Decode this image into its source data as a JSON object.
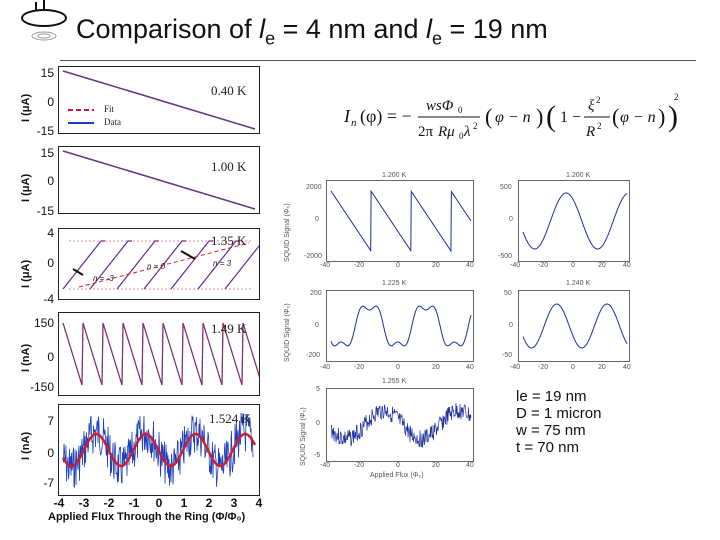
{
  "slide": {
    "title_prefix": "Comparison of ",
    "title_var1": "l",
    "title_sub1": "e",
    "title_mid": " = 4 nm and ",
    "title_var2": "l",
    "title_sub2": "e",
    "title_suffix": " = 19 nm"
  },
  "left_panels": [
    {
      "temp": "0.40 K",
      "yticks": [
        "15",
        "0",
        "-15"
      ],
      "ylabel": "I (μA)"
    },
    {
      "temp": "1.00 K",
      "yticks": [
        "15",
        "0",
        "-15"
      ],
      "ylabel": "I (μA)"
    },
    {
      "temp": "1.35 K",
      "yticks": [
        "4",
        "0",
        "-4"
      ],
      "ylabel": "I (μA)"
    },
    {
      "temp": "1.49 K",
      "yticks": [
        "150",
        "0",
        "-150"
      ],
      "ylabel": "I (nA)"
    },
    {
      "temp": "1.524 K",
      "yticks": [
        "7",
        "0",
        "-7"
      ],
      "ylabel": "I (nA)"
    }
  ],
  "legend": {
    "fit": "Fit",
    "data": "Data",
    "fit_color": "#cc1e2e",
    "data_color": "#1f3fbf"
  },
  "annotations": {
    "n0": "n = 0",
    "n3": "n = 3",
    "nm3": "n = -3"
  },
  "x_axis": {
    "ticks": [
      "-4",
      "-3",
      "-2",
      "-1",
      "0",
      "1",
      "2",
      "3",
      "4"
    ],
    "label": "Applied Flux Through the Ring (Φ/Φ₀)"
  },
  "right_panels": [
    {
      "title": "1.200 K",
      "yticks": [
        "2000",
        "0",
        "-2000"
      ],
      "xticks": [
        "-40",
        "-20",
        "0",
        "20",
        "40"
      ],
      "ylabel": "SQUID Signal (Φ₀)"
    },
    {
      "title": "1.200 K",
      "yticks": [
        "500",
        "0",
        "-500"
      ],
      "xticks": [
        "-40",
        "-20",
        "0",
        "20",
        "40"
      ]
    },
    {
      "title": "1.225 K",
      "yticks": [
        "200",
        "0",
        "-200"
      ],
      "xticks": [
        "-40",
        "-20",
        "0",
        "20",
        "40"
      ],
      "ylabel": "SQUID Signal (Φ₀)"
    },
    {
      "title": "1.240 K",
      "yticks": [
        "50",
        "0",
        "-50"
      ],
      "xticks": [
        "-40",
        "-20",
        "0",
        "20",
        "40"
      ]
    },
    {
      "title": "1.255 K",
      "yticks": [
        "5",
        "0",
        "-5"
      ],
      "xticks": [
        "-40",
        "-20",
        "0",
        "20",
        "40"
      ],
      "ylabel": "SQUID Signal (Φ₀)",
      "xlabel": "Applied Flux (Φ₀)"
    }
  ],
  "params": {
    "le": "le = 19 nm",
    "D": "D = 1 micron",
    "w": "w = 75 nm",
    "t": "t = 70 nm"
  },
  "colors": {
    "fit": "#cc1e2e",
    "data": "#1f3fbf",
    "squid": "#1c2f9e"
  }
}
